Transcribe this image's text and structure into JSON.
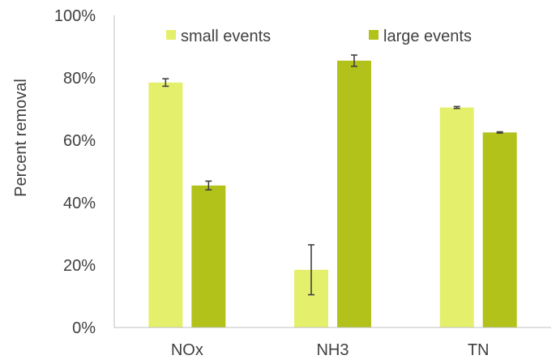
{
  "chart_data": {
    "type": "bar",
    "title": "",
    "xlabel": "",
    "ylabel": "Percent removal",
    "ylim": [
      0,
      100
    ],
    "yticks": [
      "0%",
      "20%",
      "40%",
      "60%",
      "80%",
      "100%"
    ],
    "grid": false,
    "legend_position": "top",
    "categories": [
      "NOx",
      "NH3",
      "TN"
    ],
    "series": [
      {
        "name": "small events",
        "color": "#e4ef6c",
        "values": [
          78.5,
          18.5,
          70.5
        ],
        "error": [
          1.2,
          8.0,
          0.3
        ]
      },
      {
        "name": "large events",
        "color": "#b3c21a",
        "values": [
          45.5,
          85.5,
          62.5
        ],
        "error": [
          1.4,
          1.8,
          0.2
        ]
      }
    ]
  }
}
